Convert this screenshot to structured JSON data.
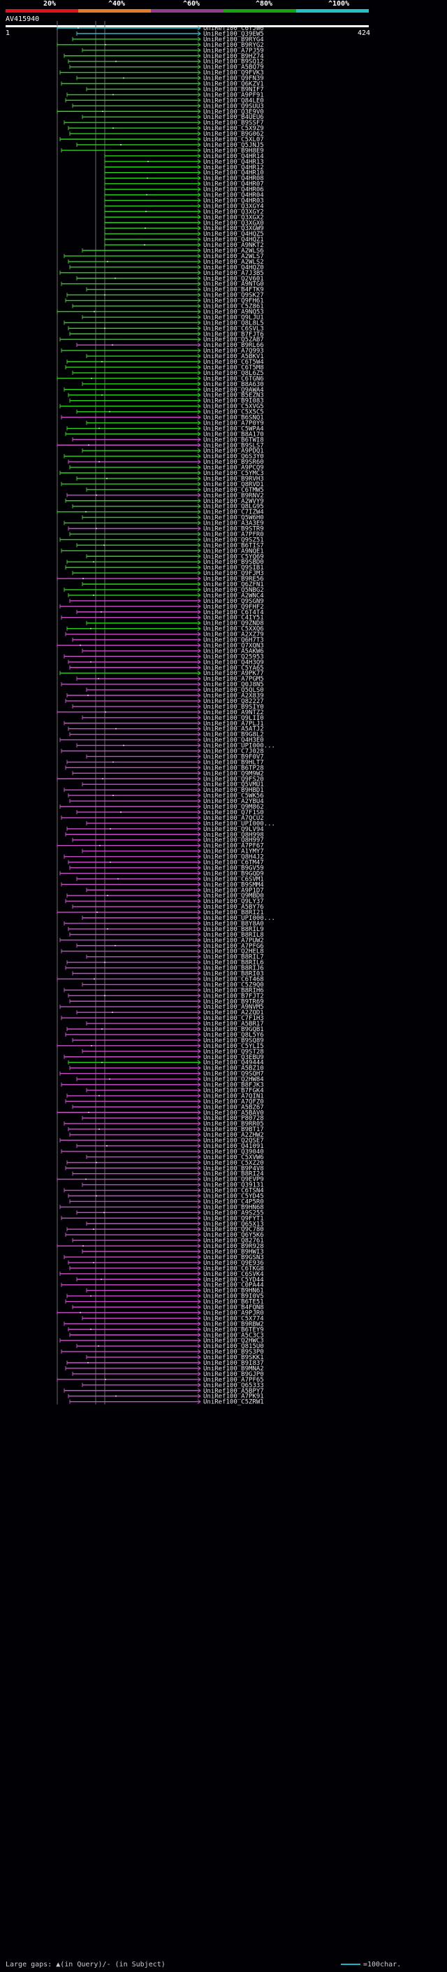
{
  "scale": {
    "labels": [
      "20%",
      "^40%",
      "^60%",
      "^80%",
      "^100%"
    ],
    "colors": [
      "#e0111f",
      "#e57b26",
      "#8d3f8c",
      "#15a30e",
      "#22c1c8"
    ]
  },
  "query": {
    "name": "AV415940",
    "start": "1",
    "end": "424"
  },
  "colors": {
    "cyan": "#29c9d0",
    "green": "#2fcf1e",
    "magenta": "#c94fc7",
    "background": "#000005",
    "guide": "#6a6a6a"
  },
  "legend": {
    "left": "Large gaps: ▲(in Query)/- (in Subject)",
    "right": "=100char."
  },
  "hits": [
    {
      "label": "UniRef100_C6TJW6",
      "color": "cyan"
    },
    {
      "label": "UniRef100_Q39EW5",
      "color": "cyan"
    },
    {
      "label": "UniRef100_B9RYG4",
      "color": "green"
    },
    {
      "label": "UniRef100_B9RYG2",
      "color": "green"
    },
    {
      "label": "UniRef100_A7PJ59",
      "color": "green"
    },
    {
      "label": "UniRef100_B9HZ74",
      "color": "green"
    },
    {
      "label": "UniRef100_B9SQ12",
      "color": "green"
    },
    {
      "label": "UniRef100_A5BQ79",
      "color": "green"
    },
    {
      "label": "UniRef100_Q9FVK3",
      "color": "green"
    },
    {
      "label": "UniRef100_Q9FN39",
      "color": "green"
    },
    {
      "label": "UniRef100_Q6KZV1",
      "color": "green"
    },
    {
      "label": "UniRef100_B9NIF7",
      "color": "green"
    },
    {
      "label": "UniRef100_A9PF91",
      "color": "green"
    },
    {
      "label": "UniRef100_Q84LE0",
      "color": "green"
    },
    {
      "label": "UniRef100_Q9SUU3",
      "color": "green"
    },
    {
      "label": "UniRef100_Q3E9V0",
      "color": "green"
    },
    {
      "label": "UniRef100_B4UEU6",
      "color": "green"
    },
    {
      "label": "UniRef100_B9SSF7",
      "color": "green"
    },
    {
      "label": "UniRef100_C5X9Z9",
      "color": "green"
    },
    {
      "label": "UniRef100_B9G062",
      "color": "green"
    },
    {
      "label": "UniRef100_C5XL07",
      "color": "green"
    },
    {
      "label": "UniRef100_Q5JNJ5",
      "color": "green"
    },
    {
      "label": "UniRef100_B9H8E9",
      "color": "green"
    },
    {
      "label": "UniRef100_Q4HR14",
      "color": "green"
    },
    {
      "label": "UniRef100_Q4HR13",
      "color": "green"
    },
    {
      "label": "UniRef100_Q4HR12",
      "color": "green"
    },
    {
      "label": "UniRef100_Q4HR10",
      "color": "green"
    },
    {
      "label": "UniRef100_Q4HR08",
      "color": "green"
    },
    {
      "label": "UniRef100_Q4HR07",
      "color": "green"
    },
    {
      "label": "UniRef100_Q4HR06",
      "color": "green"
    },
    {
      "label": "UniRef100_Q4HR04",
      "color": "green"
    },
    {
      "label": "UniRef100_Q4HR03",
      "color": "green"
    },
    {
      "label": "UniRef100_Q3XGY4",
      "color": "green"
    },
    {
      "label": "UniRef100_Q3XGY2",
      "color": "green"
    },
    {
      "label": "UniRef100_Q3XGX2",
      "color": "green"
    },
    {
      "label": "UniRef100_Q3XGX0",
      "color": "green"
    },
    {
      "label": "UniRef100_Q3XGW9",
      "color": "green"
    },
    {
      "label": "UniRef100_Q4HQZ5",
      "color": "green"
    },
    {
      "label": "UniRef100_Q4HQZ1",
      "color": "green"
    },
    {
      "label": "UniRef100_A9NKT2",
      "color": "green"
    },
    {
      "label": "UniRef100_A2WLS6",
      "color": "green"
    },
    {
      "label": "UniRef100_A2WLS7",
      "color": "green"
    },
    {
      "label": "UniRef100_A2WLS2",
      "color": "green"
    },
    {
      "label": "UniRef100_Q4HQZ0",
      "color": "green"
    },
    {
      "label": "UniRef100_A7J3B5",
      "color": "green"
    },
    {
      "label": "UniRef100_Q2V601",
      "color": "green"
    },
    {
      "label": "UniRef100_A9NTG0",
      "color": "green"
    },
    {
      "label": "UniRef100_B4FTK9",
      "color": "green"
    },
    {
      "label": "UniRef100_Q9SK27",
      "color": "green"
    },
    {
      "label": "UniRef100_Q9FH61",
      "color": "green"
    },
    {
      "label": "UniRef100_C5Z861",
      "color": "green"
    },
    {
      "label": "UniRef100_A9NQ53",
      "color": "green"
    },
    {
      "label": "UniRef100_Q9LJU1",
      "color": "green"
    },
    {
      "label": "UniRef100_Q8L8L5",
      "color": "green"
    },
    {
      "label": "UniRef100_C6SVL3",
      "color": "green"
    },
    {
      "label": "UniRef100_B7FJT6",
      "color": "green"
    },
    {
      "label": "UniRef100_Q5ZAB7",
      "color": "green"
    },
    {
      "label": "UniRef100_B9RL66",
      "color": "magenta"
    },
    {
      "label": "UniRef100_A7Q993",
      "color": "green"
    },
    {
      "label": "UniRef100_A5BKV1",
      "color": "green"
    },
    {
      "label": "UniRef100_C6T5W4",
      "color": "green"
    },
    {
      "label": "UniRef100_C6T5M8",
      "color": "green"
    },
    {
      "label": "UniRef100_Q8L6Z5",
      "color": "green"
    },
    {
      "label": "UniRef100_C6TGN6",
      "color": "green"
    },
    {
      "label": "UniRef100_B8A630",
      "color": "green"
    },
    {
      "label": "UniRef100_Q9AWA4",
      "color": "green"
    },
    {
      "label": "UniRef100_B5EZN3",
      "color": "green"
    },
    {
      "label": "UniRef100_B9I083",
      "color": "green"
    },
    {
      "label": "UniRef100_C5XVG5",
      "color": "green"
    },
    {
      "label": "UniRef100_C5X5C5",
      "color": "green"
    },
    {
      "label": "UniRef100_B6SNQ1",
      "color": "magenta"
    },
    {
      "label": "UniRef100_A7P0Y9",
      "color": "green"
    },
    {
      "label": "UniRef100_C5WPA4",
      "color": "green"
    },
    {
      "label": "UniRef100_B8A170",
      "color": "green"
    },
    {
      "label": "UniRef100_B6TWI8",
      "color": "magenta"
    },
    {
      "label": "UniRef100_B9SLS7",
      "color": "magenta"
    },
    {
      "label": "UniRef100_A9PDQ1",
      "color": "green"
    },
    {
      "label": "UniRef100_Q6S3Y0",
      "color": "green"
    },
    {
      "label": "UniRef100_B9SR60",
      "color": "magenta"
    },
    {
      "label": "UniRef100_A9PCQ9",
      "color": "green"
    },
    {
      "label": "UniRef100_C5YMC3",
      "color": "green"
    },
    {
      "label": "UniRef100_B9RVH3",
      "color": "green"
    },
    {
      "label": "UniRef100_Q8RVD1",
      "color": "green"
    },
    {
      "label": "UniRef100_C6TMW5",
      "color": "green"
    },
    {
      "label": "UniRef100_B9RNV2",
      "color": "magenta"
    },
    {
      "label": "UniRef100_A2WVY9",
      "color": "green"
    },
    {
      "label": "UniRef100_Q8LG95",
      "color": "green"
    },
    {
      "label": "UniRef100_C7IZW4",
      "color": "green"
    },
    {
      "label": "UniRef100_Q5W6H0",
      "color": "green"
    },
    {
      "label": "UniRef100_A3A3E9",
      "color": "green"
    },
    {
      "label": "UniRef100_B9STR9",
      "color": "magenta"
    },
    {
      "label": "UniRef100_A7PFR0",
      "color": "green"
    },
    {
      "label": "UniRef100_Q9SZ51",
      "color": "green"
    },
    {
      "label": "UniRef100_B6TIS7",
      "color": "green"
    },
    {
      "label": "UniRef100_A9NQE1",
      "color": "green"
    },
    {
      "label": "UniRef100_C5YQ69",
      "color": "green"
    },
    {
      "label": "UniRef100_B9SBD0",
      "color": "green"
    },
    {
      "label": "UniRef100_Q9SIB1",
      "color": "green"
    },
    {
      "label": "UniRef100_Q9FJM3",
      "color": "green"
    },
    {
      "label": "UniRef100_B9RE56",
      "color": "magenta"
    },
    {
      "label": "UniRef100_Q6ZFN1",
      "color": "green"
    },
    {
      "label": "UniRef100_Q5NBG2",
      "color": "green"
    },
    {
      "label": "UniRef100_A2WNC4",
      "color": "green"
    },
    {
      "label": "UniRef100_Q9SGN9",
      "color": "magenta"
    },
    {
      "label": "UniRef100_Q9FHF2",
      "color": "magenta"
    },
    {
      "label": "UniRef100_C6T4T4",
      "color": "magenta"
    },
    {
      "label": "UniRef100_C4IY51",
      "color": "magenta"
    },
    {
      "label": "UniRef100_Q9ZND8",
      "color": "green"
    },
    {
      "label": "UniRef100_C5XXQ6",
      "color": "green"
    },
    {
      "label": "UniRef100_A2XZ79",
      "color": "magenta"
    },
    {
      "label": "UniRef100_Q6H7T3",
      "color": "magenta"
    },
    {
      "label": "UniRef100_Q7XQN3",
      "color": "magenta"
    },
    {
      "label": "UniRef100_A5AKW6",
      "color": "magenta"
    },
    {
      "label": "UniRef100_Q25953",
      "color": "magenta"
    },
    {
      "label": "UniRef100_Q4H3Q9",
      "color": "magenta"
    },
    {
      "label": "UniRef100_C5YA65",
      "color": "magenta"
    },
    {
      "label": "UniRef100_A9PK77",
      "color": "green"
    },
    {
      "label": "UniRef100_A7PGM5",
      "color": "magenta"
    },
    {
      "label": "UniRef100_Q0J8N5",
      "color": "magenta"
    },
    {
      "label": "UniRef100_Q5QLS0",
      "color": "magenta"
    },
    {
      "label": "UniRef100_A2X839",
      "color": "magenta"
    },
    {
      "label": "UniRef100_Q82227",
      "color": "magenta"
    },
    {
      "label": "UniRef100_B9SIY0",
      "color": "magenta"
    },
    {
      "label": "UniRef100_A9NTZ2",
      "color": "magenta"
    },
    {
      "label": "UniRef100_Q9LII0",
      "color": "magenta"
    },
    {
      "label": "UniRef100_A7PLJ1",
      "color": "magenta"
    },
    {
      "label": "UniRef100_A5ATJ2",
      "color": "magenta"
    },
    {
      "label": "UniRef100_B9G8L2",
      "color": "magenta"
    },
    {
      "label": "UniRef100_Q4H3E0",
      "color": "magenta"
    },
    {
      "label": "UniRef100_UPI000...",
      "color": "magenta"
    },
    {
      "label": "UniRef100_C7J028",
      "color": "magenta"
    },
    {
      "label": "UniRef100_B9F0V7",
      "color": "magenta"
    },
    {
      "label": "UniRef100_B9HLT7",
      "color": "magenta"
    },
    {
      "label": "UniRef100_B6TP28",
      "color": "magenta"
    },
    {
      "label": "UniRef100_Q9M9W2",
      "color": "magenta"
    },
    {
      "label": "UniRef100_Q9FS20",
      "color": "magenta"
    },
    {
      "label": "UniRef100_Q5VMU1",
      "color": "magenta"
    },
    {
      "label": "UniRef100_B9HBD1",
      "color": "magenta"
    },
    {
      "label": "UniRef100_C5WK56",
      "color": "magenta"
    },
    {
      "label": "UniRef100_A2YBU4",
      "color": "magenta"
    },
    {
      "label": "UniRef100_Q9M862",
      "color": "magenta"
    },
    {
      "label": "UniRef100_Q7F1S0",
      "color": "magenta"
    },
    {
      "label": "UniRef100_A7QCU2",
      "color": "magenta"
    },
    {
      "label": "UniRef100_UPI000...",
      "color": "magenta"
    },
    {
      "label": "UniRef100_Q9LV94",
      "color": "magenta"
    },
    {
      "label": "UniRef100_Q8H998",
      "color": "magenta"
    },
    {
      "label": "UniRef100_Q8H997",
      "color": "magenta"
    },
    {
      "label": "UniRef100_A7PF67",
      "color": "magenta"
    },
    {
      "label": "UniRef100_A1YMY7",
      "color": "magenta"
    },
    {
      "label": "UniRef100_Q8H4J2",
      "color": "magenta"
    },
    {
      "label": "UniRef100_C6TM47",
      "color": "magenta"
    },
    {
      "label": "UniRef100_B9GV59",
      "color": "magenta"
    },
    {
      "label": "UniRef100_B9GQD9",
      "color": "magenta"
    },
    {
      "label": "UniRef100_C6SVM1",
      "color": "magenta"
    },
    {
      "label": "UniRef100_B9SMM4",
      "color": "magenta"
    },
    {
      "label": "UniRef100_A9P1D7",
      "color": "magenta"
    },
    {
      "label": "UniRef100_Q9MBD0",
      "color": "magenta"
    },
    {
      "label": "UniRef100_Q9LY37",
      "color": "magenta"
    },
    {
      "label": "UniRef100_A5BY76",
      "color": "magenta"
    },
    {
      "label": "UniRef100_B8RI21",
      "color": "magenta"
    },
    {
      "label": "UniRef100_UPI000...",
      "color": "magenta"
    },
    {
      "label": "UniRef100_B8Y8A0",
      "color": "magenta"
    },
    {
      "label": "UniRef100_B8RIL9",
      "color": "magenta"
    },
    {
      "label": "UniRef100_B8RIL8",
      "color": "magenta"
    },
    {
      "label": "UniRef100_A7PUW2",
      "color": "magenta"
    },
    {
      "label": "UniRef100_A7PFG6",
      "color": "magenta"
    },
    {
      "label": "UniRef100_Q2HEL8",
      "color": "magenta"
    },
    {
      "label": "UniRef100_B8RIL7",
      "color": "magenta"
    },
    {
      "label": "UniRef100_B8RIL6",
      "color": "magenta"
    },
    {
      "label": "UniRef100_B8RIJ6",
      "color": "magenta"
    },
    {
      "label": "UniRef100_B8RI03",
      "color": "magenta"
    },
    {
      "label": "UniRef100_C6T468",
      "color": "magenta"
    },
    {
      "label": "UniRef100_C5Z9Q0",
      "color": "magenta"
    },
    {
      "label": "UniRef100_B8RIH6",
      "color": "magenta"
    },
    {
      "label": "UniRef100_B7FJT2",
      "color": "magenta"
    },
    {
      "label": "UniRef100_B9TR69",
      "color": "magenta"
    },
    {
      "label": "UniRef100_A9NVM5",
      "color": "magenta"
    },
    {
      "label": "UniRef100_A2ZQD1",
      "color": "magenta"
    },
    {
      "label": "UniRef100_C7F1H3",
      "color": "magenta"
    },
    {
      "label": "UniRef100_A5BR17",
      "color": "magenta"
    },
    {
      "label": "UniRef100_B9GQB1",
      "color": "magenta"
    },
    {
      "label": "UniRef100_Q8L5Y6",
      "color": "magenta"
    },
    {
      "label": "UniRef100_B9SQ89",
      "color": "magenta"
    },
    {
      "label": "UniRef100_C5YLI5",
      "color": "magenta"
    },
    {
      "label": "UniRef100_Q9ST28",
      "color": "magenta"
    },
    {
      "label": "UniRef100_Q3EBU9",
      "color": "magenta"
    },
    {
      "label": "UniRef100_Q49444",
      "color": "green"
    },
    {
      "label": "UniRef100_A5BZ10",
      "color": "magenta"
    },
    {
      "label": "UniRef100_Q9SQH7",
      "color": "magenta"
    },
    {
      "label": "UniRef100_Q2HW84",
      "color": "magenta"
    },
    {
      "label": "UniRef100_B8FJK3",
      "color": "magenta"
    },
    {
      "label": "UniRef100_B7FGK4",
      "color": "magenta"
    },
    {
      "label": "UniRef100_A7QIN1",
      "color": "magenta"
    },
    {
      "label": "UniRef100_A7QFZ0",
      "color": "magenta"
    },
    {
      "label": "UniRef100_A5BZ67",
      "color": "magenta"
    },
    {
      "label": "UniRef100_A5BAV0",
      "color": "magenta"
    },
    {
      "label": "UniRef100_P80728",
      "color": "magenta"
    },
    {
      "label": "UniRef100_B9RR05",
      "color": "magenta"
    },
    {
      "label": "UniRef100_B9BT17",
      "color": "magenta"
    },
    {
      "label": "UniRef100_A2ZHW2",
      "color": "magenta"
    },
    {
      "label": "UniRef100_Q2QSE7",
      "color": "magenta"
    },
    {
      "label": "UniRef100_Q41091",
      "color": "magenta"
    },
    {
      "label": "UniRef100_Q39040",
      "color": "magenta"
    },
    {
      "label": "UniRef100_C5XVW6",
      "color": "magenta"
    },
    {
      "label": "UniRef100_C5XZ20",
      "color": "magenta"
    },
    {
      "label": "UniRef100_B9P4V8",
      "color": "magenta"
    },
    {
      "label": "UniRef100_B8RI24",
      "color": "magenta"
    },
    {
      "label": "UniRef100_Q9EVP9",
      "color": "magenta"
    },
    {
      "label": "UniRef100_Q39131",
      "color": "magenta"
    },
    {
      "label": "UniRef100_C6TSN4",
      "color": "magenta"
    },
    {
      "label": "UniRef100_C5YD45",
      "color": "magenta"
    },
    {
      "label": "UniRef100_C4P5R0",
      "color": "magenta"
    },
    {
      "label": "UniRef100_B9HN68",
      "color": "magenta"
    },
    {
      "label": "UniRef100_A9S255",
      "color": "magenta"
    },
    {
      "label": "UniRef100_Q9FYT1",
      "color": "magenta"
    },
    {
      "label": "UniRef100_Q65X13",
      "color": "magenta"
    },
    {
      "label": "UniRef100_Q9C780",
      "color": "magenta"
    },
    {
      "label": "UniRef100_Q6Y5K6",
      "color": "magenta"
    },
    {
      "label": "UniRef100_Q82761",
      "color": "magenta"
    },
    {
      "label": "UniRef100_B9R928",
      "color": "magenta"
    },
    {
      "label": "UniRef100_B9HWI3",
      "color": "magenta"
    },
    {
      "label": "UniRef100_B9GSN3",
      "color": "magenta"
    },
    {
      "label": "UniRef100_Q9E936",
      "color": "magenta"
    },
    {
      "label": "UniRef100_C6TKG8",
      "color": "magenta"
    },
    {
      "label": "UniRef100_C6SVK4",
      "color": "magenta"
    },
    {
      "label": "UniRef100_C5YD44",
      "color": "magenta"
    },
    {
      "label": "UniRef100_C0PA44",
      "color": "magenta"
    },
    {
      "label": "UniRef100_B9HN61",
      "color": "magenta"
    },
    {
      "label": "UniRef100_B9I0V5",
      "color": "magenta"
    },
    {
      "label": "UniRef100_B6TE51",
      "color": "magenta"
    },
    {
      "label": "UniRef100_B4FQN8",
      "color": "magenta"
    },
    {
      "label": "UniRef100_A9PJR0",
      "color": "magenta"
    },
    {
      "label": "UniRef100_C5X774",
      "color": "magenta"
    },
    {
      "label": "UniRef100_B9RBW2",
      "color": "magenta"
    },
    {
      "label": "UniRef100_B6TEY9",
      "color": "magenta"
    },
    {
      "label": "UniRef100_A5C3C3",
      "color": "magenta"
    },
    {
      "label": "UniRef100_Q2HWC3",
      "color": "magenta"
    },
    {
      "label": "UniRef100_Q815U0",
      "color": "magenta"
    },
    {
      "label": "UniRef100_B9S3P0",
      "color": "magenta"
    },
    {
      "label": "UniRef100_B9SKK1",
      "color": "magenta"
    },
    {
      "label": "UniRef100_B9I837",
      "color": "magenta"
    },
    {
      "label": "UniRef100_B9MNA2",
      "color": "magenta"
    },
    {
      "label": "UniRef100_B9GJP0",
      "color": "magenta"
    },
    {
      "label": "UniRef100_A7PF65",
      "color": "magenta"
    },
    {
      "label": "UniRef100_Q65333",
      "color": "magenta"
    },
    {
      "label": "UniRef100_A5BPY7",
      "color": "magenta"
    },
    {
      "label": "UniRef100_A7PK91",
      "color": "magenta"
    },
    {
      "label": "UniRef100_C5ZRW1",
      "color": "magenta"
    }
  ]
}
